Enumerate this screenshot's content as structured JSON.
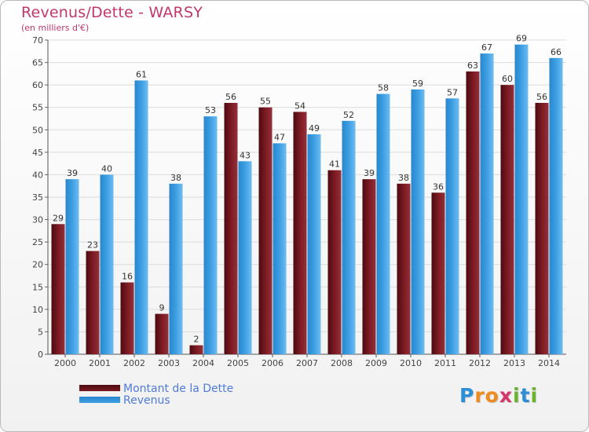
{
  "colors": {
    "title": "#c0386a",
    "debt": "#7b1a22",
    "revenue": "#3d9fe3",
    "legend_text": "#4f7bd9"
  },
  "chart_data": {
    "type": "bar",
    "title": "Revenus/Dette - WARSY",
    "subtitle": "(en milliers d'€)",
    "categories": [
      "2000",
      "2001",
      "2002",
      "2003",
      "2004",
      "2005",
      "2006",
      "2007",
      "2008",
      "2009",
      "2010",
      "2011",
      "2012",
      "2013",
      "2014"
    ],
    "series": [
      {
        "name": "Montant de la Dette",
        "color": "#7b1a22",
        "values": [
          29,
          23,
          16,
          9,
          2,
          56,
          55,
          54,
          41,
          39,
          38,
          36,
          63,
          60,
          56
        ]
      },
      {
        "name": "Revenus",
        "color": "#3d9fe3",
        "values": [
          39,
          40,
          61,
          38,
          53,
          43,
          47,
          49,
          52,
          58,
          59,
          57,
          67,
          69,
          66
        ]
      }
    ],
    "ylim": [
      0,
      70
    ],
    "yticks": [
      0,
      5,
      10,
      15,
      20,
      25,
      30,
      35,
      40,
      45,
      50,
      55,
      60,
      65,
      70
    ],
    "grid": true,
    "legend": "bottom-left",
    "data_labels": true
  },
  "logo": {
    "text": "Proxiti",
    "letters": [
      "P",
      "r",
      "o",
      "x",
      "i",
      "t",
      "i"
    ],
    "letter_colors": [
      "#2c8fd6",
      "#f08a1d",
      "#f08a1d",
      "#d6356a",
      "#6ab42c",
      "#2c8fd6",
      "#6ab42c"
    ]
  }
}
